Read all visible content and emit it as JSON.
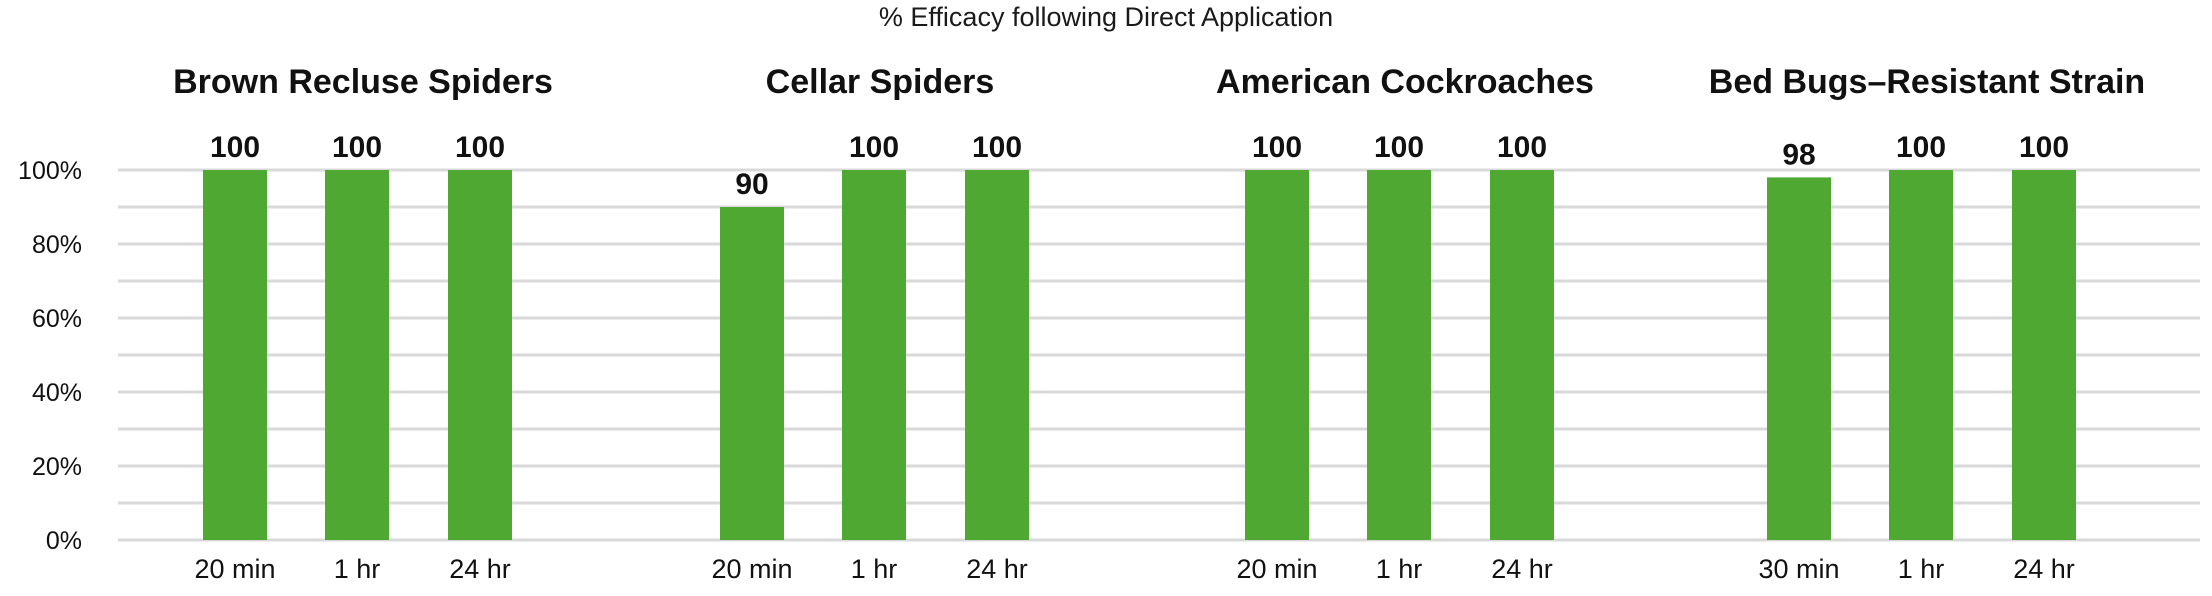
{
  "chart_data": {
    "type": "bar",
    "title": "% Efficacy following Direct Application",
    "xlabel": "",
    "ylabel": "",
    "ylim": [
      0,
      100
    ],
    "ytick_labels": [
      "0%",
      "20%",
      "40%",
      "60%",
      "80%",
      "100%"
    ],
    "ytick_values": [
      0,
      20,
      40,
      60,
      80,
      100
    ],
    "grid": true,
    "bar_color": "#4ea832",
    "groups": [
      {
        "name": "Brown Recluse Spiders",
        "categories": [
          "20 min",
          "1 hr",
          "24 hr"
        ],
        "values": [
          100,
          100,
          100
        ],
        "labels": [
          "100",
          "100",
          "100"
        ]
      },
      {
        "name": "Cellar Spiders",
        "categories": [
          "20 min",
          "1 hr",
          "24 hr"
        ],
        "values": [
          90,
          100,
          100
        ],
        "labels": [
          "90",
          "100",
          "100"
        ]
      },
      {
        "name": "American Cockroaches",
        "categories": [
          "20 min",
          "1 hr",
          "24 hr"
        ],
        "values": [
          100,
          100,
          100
        ],
        "labels": [
          "100",
          "100",
          "100"
        ]
      },
      {
        "name": "Bed Bugs–Resistant Strain",
        "categories": [
          "30 min",
          "1 hr",
          "24 hr"
        ],
        "values": [
          98,
          100,
          100
        ],
        "labels": [
          "98",
          "100",
          "100"
        ]
      }
    ]
  }
}
